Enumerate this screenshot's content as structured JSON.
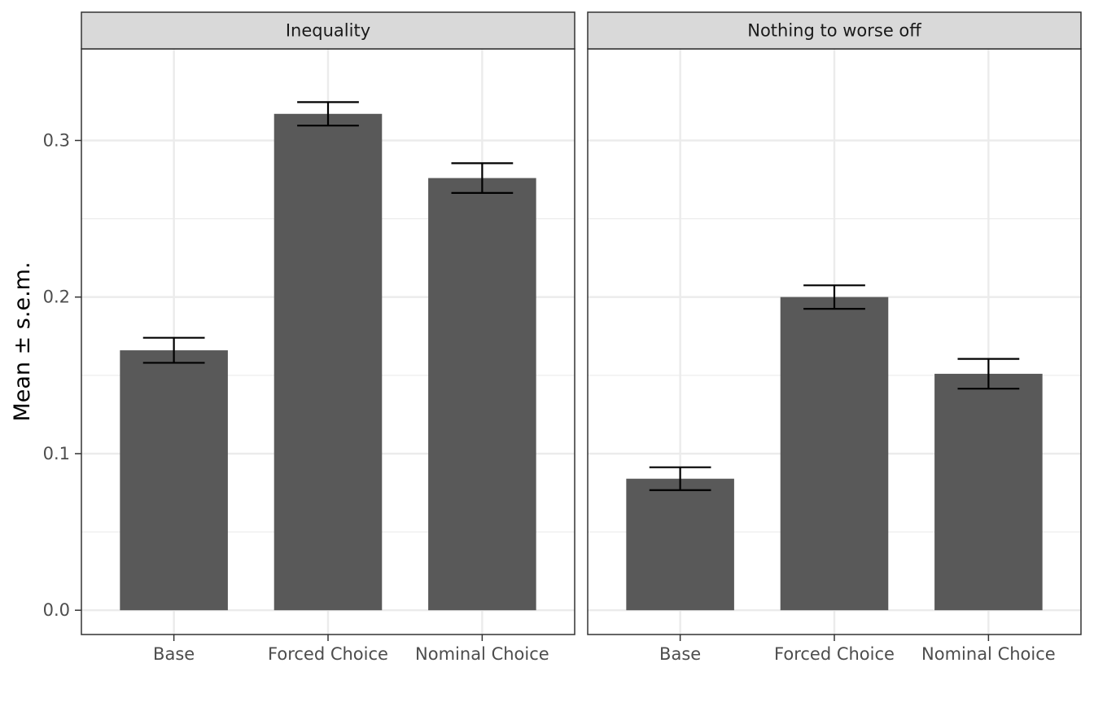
{
  "chart_data": {
    "type": "bar",
    "ylabel": "Mean ± s.e.m.",
    "xlabel": "",
    "ylim": [
      -0.0155,
      0.3585
    ],
    "yticks": [
      "0.0",
      "0.1",
      "0.2",
      "0.3"
    ],
    "ytick_values": [
      0.0,
      0.1,
      0.2,
      0.3
    ],
    "categories": [
      "Base",
      "Forced Choice",
      "Nominal Choice"
    ],
    "grid": true,
    "bar_color": "#595959",
    "errorbar_color": "#000000",
    "panels": [
      {
        "facet": "Inequality",
        "values": [
          0.166,
          0.317,
          0.276
        ],
        "errors": [
          0.008,
          0.0075,
          0.0095
        ]
      },
      {
        "facet": "Nothing to worse off",
        "values": [
          0.084,
          0.2,
          0.151
        ],
        "errors": [
          0.0073,
          0.0075,
          0.0095
        ]
      }
    ]
  }
}
